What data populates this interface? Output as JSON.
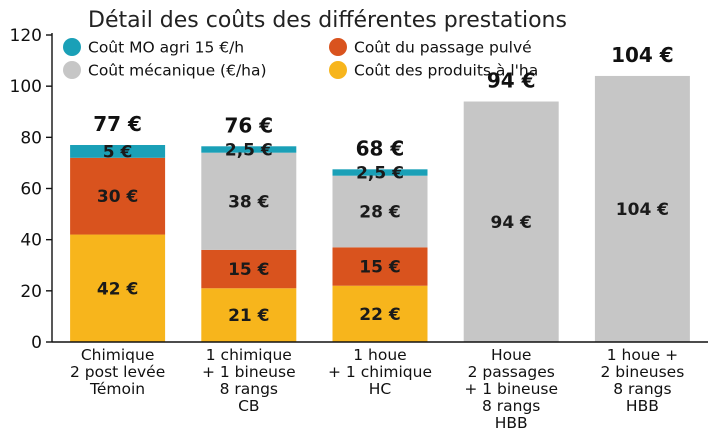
{
  "chart_data": {
    "type": "bar",
    "stacked": true,
    "title": "Détail des coûts des différentes prestations",
    "ylim": [
      0,
      120
    ],
    "yticks": [
      0,
      20,
      40,
      60,
      80,
      100,
      120
    ],
    "grid": false,
    "legend_position": "top",
    "categories": [
      [
        "Chimique",
        "2 post levée",
        "Témoin"
      ],
      [
        "1 chimique",
        "+ 1 bineuse",
        "8 rangs",
        "CB"
      ],
      [
        "1 houe",
        "+ 1 chimique",
        "HC"
      ],
      [
        "Houe",
        "2 passages",
        "+ 1 bineuse",
        "8 rangs",
        "HBB"
      ],
      [
        "1 houe +",
        "2 bineuses",
        "8 rangs",
        "HBB"
      ]
    ],
    "series": [
      {
        "name": "Coût des produits à l'ha",
        "color": "#f7b51c",
        "values": [
          42,
          21,
          22,
          0,
          0
        ],
        "labels": [
          "42 €",
          "21 €",
          "22 €",
          "",
          ""
        ]
      },
      {
        "name": "Coût du passage pulvé",
        "color": "#d9531e",
        "values": [
          30,
          15,
          15,
          0,
          0
        ],
        "labels": [
          "30 €",
          "15 €",
          "15 €",
          "",
          ""
        ]
      },
      {
        "name": "Coût mécanique (€/ha)",
        "color": "#c6c6c6",
        "values": [
          0,
          38,
          28,
          94,
          104
        ],
        "labels": [
          "",
          "38 €",
          "28 €",
          "94 €",
          "104 €"
        ]
      },
      {
        "name": "Coût MO agri 15 €/h",
        "color": "#1aa0b7",
        "values": [
          5,
          2.5,
          2.5,
          0,
          0
        ],
        "labels": [
          "5 €",
          "2,5 €",
          "2,5 €",
          "",
          ""
        ]
      }
    ],
    "legend_order": [
      3,
      1,
      2,
      0
    ],
    "totals": [
      "77 €",
      "76 €",
      "68 €",
      "94 €",
      "104 €"
    ]
  }
}
